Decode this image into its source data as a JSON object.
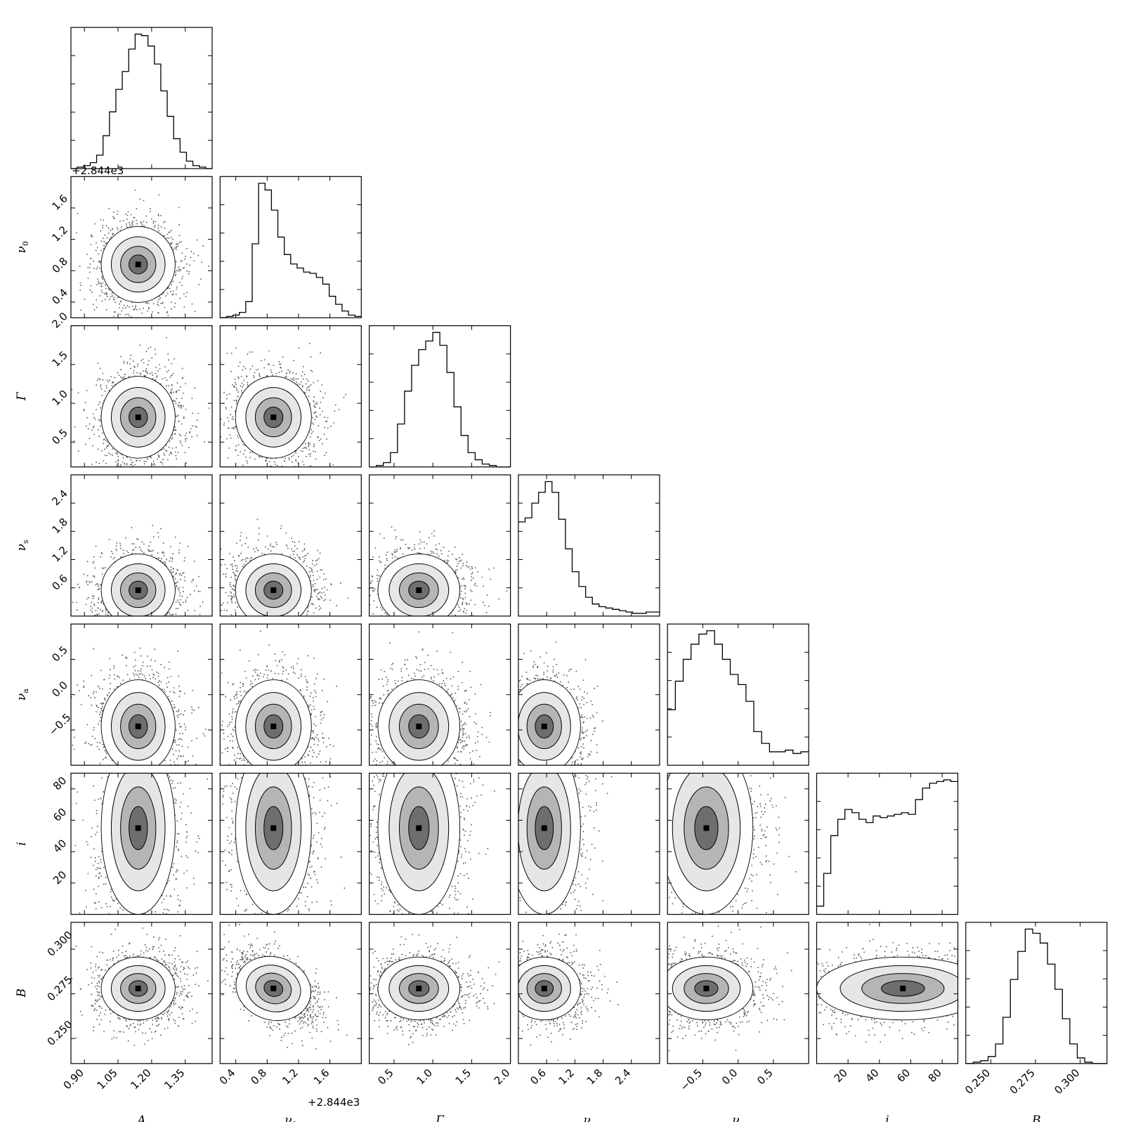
{
  "chart_data": {
    "type": "corner",
    "title": "",
    "parameters": [
      {
        "label": "A",
        "sub": "",
        "range": [
          0.84,
          1.47
        ],
        "ticks": [
          0.9,
          1.05,
          1.2,
          1.35
        ],
        "tick_labels": [
          "0.90",
          "1.05",
          "1.20",
          "1.35"
        ],
        "offset_label": "",
        "center": 1.14,
        "spread": 0.075
      },
      {
        "label": "ν",
        "sub": "0",
        "range": [
          0.2,
          2.0
        ],
        "ticks": [
          0.4,
          0.8,
          1.2,
          1.6
        ],
        "tick_labels": [
          "0.4",
          "0.8",
          "1.2",
          "1.6"
        ],
        "offset_label": "+2.844e3",
        "center": 0.88,
        "spread": 0.22
      },
      {
        "label": "Γ",
        "sub": "",
        "range": [
          0.18,
          2.0
        ],
        "ticks": [
          0.5,
          1.0,
          1.5,
          2.0
        ],
        "tick_labels": [
          "0.5",
          "1.0",
          "1.5",
          "2.0"
        ],
        "offset_label": "",
        "center": 0.82,
        "spread": 0.24
      },
      {
        "label": "ν",
        "sub": "s",
        "range": [
          0.0,
          3.0
        ],
        "ticks": [
          0.6,
          1.2,
          1.8,
          2.4
        ],
        "tick_labels": [
          "0.6",
          "1.2",
          "1.8",
          "2.4"
        ],
        "offset_label": "",
        "center": 0.55,
        "spread": 0.35
      },
      {
        "label": "ν",
        "sub": "a",
        "range": [
          -1.0,
          1.0
        ],
        "ticks": [
          -0.5,
          0.0,
          0.5
        ],
        "tick_labels": [
          "−0.5",
          "0.0",
          "0.5"
        ],
        "offset_label": "",
        "center": -0.45,
        "spread": 0.3
      },
      {
        "label": "i",
        "sub": "",
        "range": [
          0,
          90
        ],
        "ticks": [
          20,
          40,
          60,
          80
        ],
        "tick_labels": [
          "20",
          "40",
          "60",
          "80"
        ],
        "offset_label": "",
        "center": 55,
        "spread": 25
      },
      {
        "label": "B",
        "sub": "",
        "range": [
          0.236,
          0.315
        ],
        "ticks": [
          0.25,
          0.275,
          0.3
        ],
        "tick_labels": [
          "0.250",
          "0.275",
          "0.300"
        ],
        "offset_label": "",
        "center": 0.278,
        "spread": 0.008
      }
    ],
    "top_offset_label": "+2.844e3",
    "histograms": [
      [
        0,
        1,
        2,
        4,
        9,
        22,
        38,
        53,
        65,
        80,
        90,
        89,
        82,
        70,
        52,
        35,
        20,
        11,
        5,
        2,
        1,
        0
      ],
      [
        0,
        1,
        2,
        4,
        12,
        55,
        100,
        95,
        80,
        60,
        47,
        40,
        37,
        34,
        33,
        30,
        25,
        16,
        10,
        5,
        2,
        1
      ],
      [
        0,
        1,
        3,
        10,
        30,
        53,
        71,
        82,
        88,
        94,
        85,
        66,
        42,
        22,
        10,
        5,
        2,
        1,
        0,
        0
      ],
      [
        70,
        73,
        84,
        92,
        100,
        92,
        72,
        50,
        33,
        22,
        14,
        9,
        7,
        6,
        5,
        4,
        3,
        2,
        2,
        3,
        3
      ],
      [
        33,
        50,
        63,
        72,
        78,
        80,
        72,
        63,
        54,
        48,
        38,
        20,
        13,
        8,
        8,
        9,
        7,
        8
      ],
      [
        5,
        25,
        48,
        58,
        64,
        62,
        58,
        56,
        60,
        59,
        60,
        61,
        62,
        61,
        70,
        77,
        80,
        81,
        82,
        81
      ],
      [
        0,
        1,
        2,
        5,
        14,
        33,
        60,
        80,
        96,
        93,
        86,
        71,
        53,
        32,
        14,
        4,
        1,
        0,
        0
      ]
    ],
    "correlations": [
      [
        1,
        2,
        0
      ],
      [
        1,
        3,
        0
      ],
      [
        1,
        4,
        0
      ],
      [
        1,
        5,
        0
      ],
      [
        1,
        6,
        -0.5
      ]
    ]
  }
}
